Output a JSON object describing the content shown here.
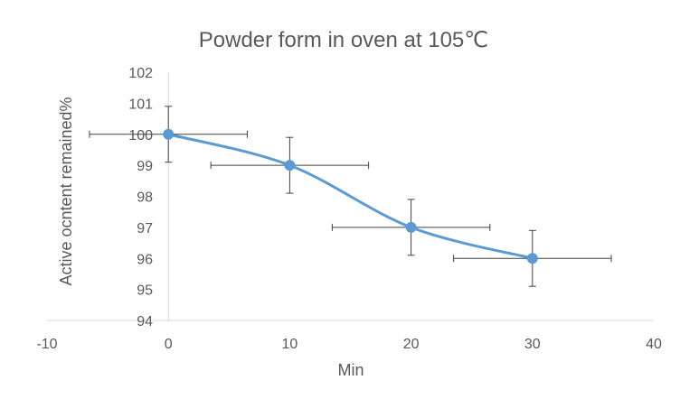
{
  "chart_data": {
    "type": "scatter",
    "title": "Powder form in oven at 105℃",
    "xlabel": "Min",
    "ylabel": "Active ocntent remained%",
    "xlim": [
      -10,
      40
    ],
    "ylim": [
      94,
      102
    ],
    "x_ticks": [
      -10,
      0,
      10,
      20,
      30,
      40
    ],
    "y_ticks": [
      94,
      95,
      96,
      97,
      98,
      99,
      100,
      101,
      102
    ],
    "grid": false,
    "smooth_line": true,
    "colors": {
      "series": "#5b9bd5",
      "error_bar": "#404040",
      "axis": "#d9d9d9",
      "text": "#595959"
    },
    "series": [
      {
        "x": [
          0,
          10,
          20,
          30
        ],
        "y": [
          100,
          99,
          97,
          96
        ],
        "x_error": [
          6.5,
          6.5,
          6.5,
          6.5
        ],
        "y_error": [
          0.9,
          0.9,
          0.9,
          0.9
        ]
      }
    ]
  }
}
